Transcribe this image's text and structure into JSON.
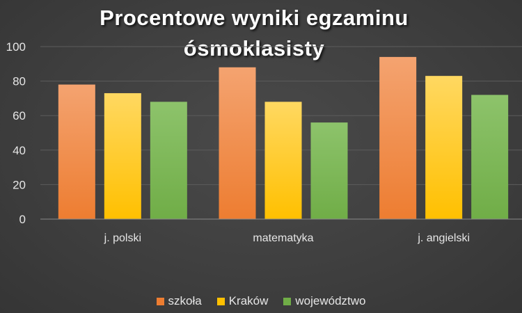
{
  "chart_data": {
    "type": "bar",
    "title_lines": [
      "Procentowe wyniki egzaminu",
      "ósmoklasisty"
    ],
    "categories": [
      "j. polski",
      "matematyka",
      "j. angielski"
    ],
    "series": [
      {
        "name": "szkoła",
        "values": [
          78,
          88,
          94
        ],
        "color": "#ED7D31",
        "color_light": "#F4A370"
      },
      {
        "name": "Kraków",
        "values": [
          73,
          68,
          83
        ],
        "color": "#FFC000",
        "color_light": "#FFD861"
      },
      {
        "name": "województwo",
        "values": [
          68,
          56,
          72
        ],
        "color": "#70AD47",
        "color_light": "#8DC36B"
      }
    ],
    "ylim": [
      0,
      100
    ],
    "yticks": [
      0,
      20,
      40,
      60,
      80,
      100
    ],
    "grid": true,
    "legend_position": "bottom",
    "background": "#404040"
  }
}
